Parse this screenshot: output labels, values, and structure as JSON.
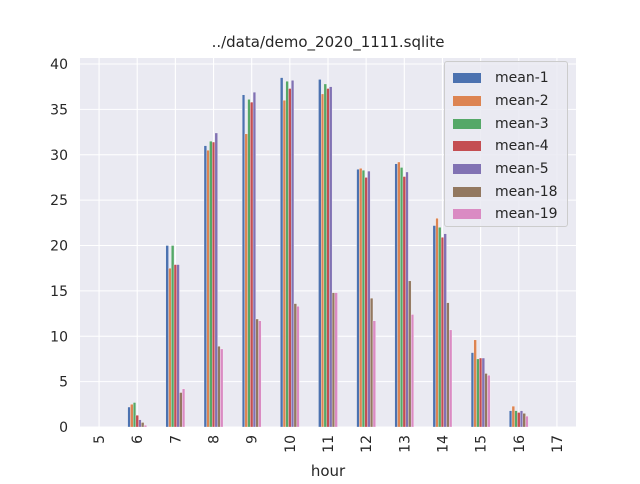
{
  "chart_data": {
    "type": "bar",
    "title": "../data/demo_2020_1111.sqlite",
    "xlabel": "hour",
    "ylabel": "",
    "ylim": [
      0,
      40
    ],
    "yticks": [
      0,
      5,
      10,
      15,
      20,
      25,
      30,
      35,
      40
    ],
    "categories": [
      "5",
      "6",
      "7",
      "8",
      "9",
      "10",
      "11",
      "12",
      "13",
      "14",
      "15",
      "16",
      "17"
    ],
    "grid": true,
    "legend_position": "top-right",
    "series": [
      {
        "name": "mean-1",
        "color": "#4c72b0",
        "values": [
          0,
          2.2,
          20.0,
          31.0,
          36.6,
          38.5,
          38.3,
          28.4,
          29.0,
          22.2,
          8.2,
          1.8,
          0
        ]
      },
      {
        "name": "mean-2",
        "color": "#dd8452",
        "values": [
          0,
          2.5,
          17.5,
          30.5,
          32.3,
          36.0,
          36.7,
          28.5,
          29.2,
          23.0,
          9.6,
          2.3,
          0
        ]
      },
      {
        "name": "mean-3",
        "color": "#55a868",
        "values": [
          0,
          2.7,
          20.0,
          31.5,
          36.1,
          38.1,
          37.8,
          28.3,
          28.6,
          22.0,
          7.5,
          1.8,
          0
        ]
      },
      {
        "name": "mean-4",
        "color": "#c44e52",
        "values": [
          0,
          1.3,
          17.9,
          31.4,
          35.8,
          37.3,
          37.3,
          27.5,
          27.6,
          20.9,
          7.6,
          1.6,
          0
        ]
      },
      {
        "name": "mean-5",
        "color": "#8172b3",
        "values": [
          0,
          0.8,
          17.9,
          32.4,
          36.9,
          38.2,
          37.5,
          28.2,
          28.1,
          21.3,
          7.6,
          1.8,
          0
        ]
      },
      {
        "name": "mean-18",
        "color": "#937860",
        "values": [
          0,
          0.5,
          3.8,
          8.9,
          11.9,
          13.6,
          14.8,
          14.2,
          16.1,
          13.7,
          5.9,
          1.5,
          0
        ]
      },
      {
        "name": "mean-19",
        "color": "#da8bc3",
        "values": [
          0,
          0.2,
          4.2,
          8.6,
          11.7,
          13.3,
          14.8,
          11.7,
          12.4,
          10.7,
          5.7,
          1.2,
          0
        ]
      }
    ]
  }
}
